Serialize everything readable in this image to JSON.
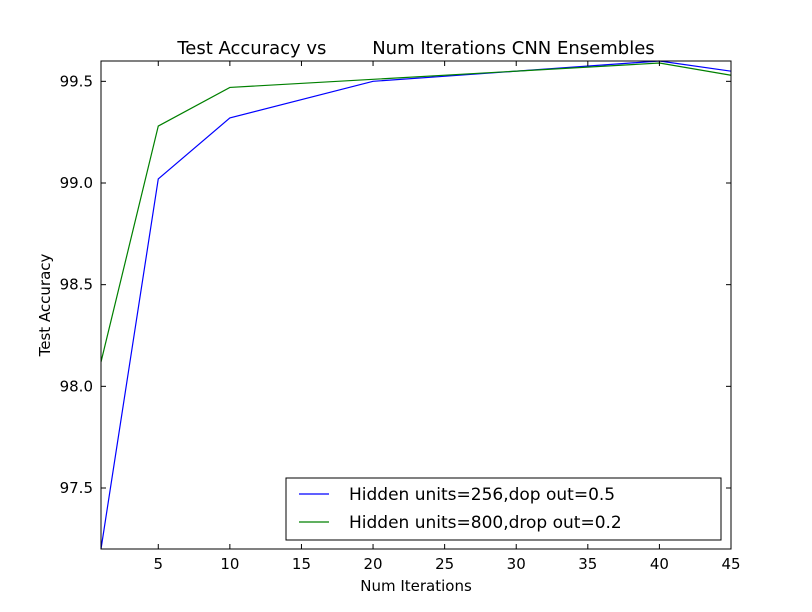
{
  "chart_data": {
    "type": "line",
    "title": "Test Accuracy vs        Num Iterations CNN Ensembles",
    "xlabel": "Num Iterations",
    "ylabel": "Test Accuracy",
    "xlim": [
      1,
      45
    ],
    "ylim": [
      97.2,
      99.6
    ],
    "xticks": [
      5,
      10,
      15,
      20,
      25,
      30,
      35,
      40,
      45
    ],
    "yticks": [
      97.5,
      98.0,
      98.5,
      99.0,
      99.5
    ],
    "ytick_labels": [
      "97.5",
      "98.0",
      "98.5",
      "99.0",
      "99.5"
    ],
    "grid": false,
    "legend_position": "lower-right",
    "x": [
      1,
      5,
      10,
      20,
      40,
      45
    ],
    "series": [
      {
        "name": "Hidden units=256,dop out=0.5",
        "color": "#0000ff",
        "values": [
          97.2,
          99.02,
          99.32,
          99.5,
          99.6,
          99.55
        ]
      },
      {
        "name": "Hidden units=800,drop        out=0.2",
        "color": "#008000",
        "values": [
          98.12,
          99.28,
          99.47,
          99.51,
          99.59,
          99.53
        ]
      }
    ]
  }
}
